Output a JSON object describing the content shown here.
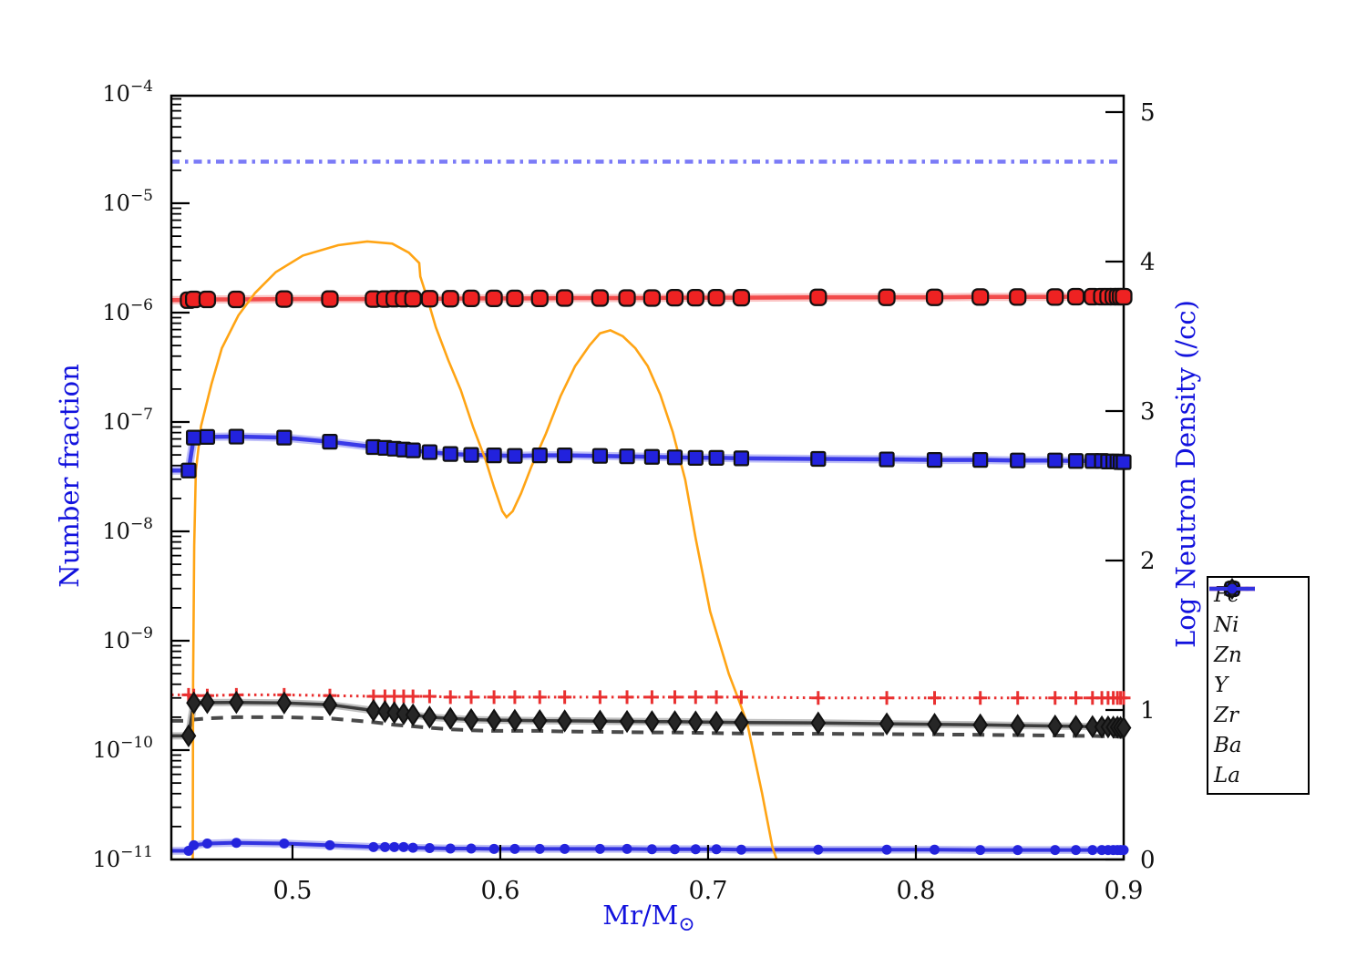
{
  "figure": {
    "xlabel_main": "Mr/M",
    "xlabel_sub": "⊙",
    "ylabel_left": "Number fraction",
    "ylabel_right": "Log Neutron Density (/cc)",
    "label_color": "#1212dd",
    "axis_color": "#000000",
    "background": "#ffffff"
  },
  "chart_data": {
    "type": "line",
    "title": "",
    "x_axis": {
      "label": "Mr/M⊙",
      "range": [
        0.4417,
        0.9
      ],
      "ticks": [
        0.5,
        0.6,
        0.7,
        0.8,
        0.9
      ],
      "tick_labels": [
        "0.5",
        "0.6",
        "0.7",
        "0.8",
        "0.9"
      ]
    },
    "y_axis_left": {
      "label": "Number fraction",
      "scale": "log",
      "range": [
        1e-11,
        0.0001
      ],
      "tick_exponents": [
        -4,
        -5,
        -6,
        -7,
        -8,
        -9,
        -10,
        -11
      ]
    },
    "y_axis_right": {
      "label": "Log Neutron Density (/cc)",
      "scale": "linear",
      "range": [
        0,
        5.11
      ],
      "ticks": [
        0,
        1,
        2,
        3,
        4,
        5
      ],
      "tick_labels": [
        "0",
        "1",
        "2",
        "3",
        "4",
        "5"
      ]
    },
    "grid": false,
    "x": [
      0.4417,
      0.45,
      0.4525,
      0.459,
      0.473,
      0.496,
      0.518,
      0.539,
      0.5445,
      0.549,
      0.5535,
      0.558,
      0.566,
      0.576,
      0.586,
      0.597,
      0.607,
      0.619,
      0.631,
      0.648,
      0.661,
      0.673,
      0.684,
      0.694,
      0.704,
      0.716,
      0.753,
      0.786,
      0.809,
      0.831,
      0.849,
      0.867,
      0.877,
      0.885,
      0.8895,
      0.8925,
      0.895,
      0.897,
      0.8985,
      0.9
    ],
    "series": [
      {
        "name": "Fe",
        "color": "#7b7bf7",
        "style": "dashdot",
        "width": 4.5,
        "glow": false,
        "marker": "none",
        "marker_fill": "#7b7bf7",
        "msize": 0,
        "values": 2.4e-05
      },
      {
        "name": "Ni",
        "color": "#f24b4b",
        "style": "solid",
        "width": 4.5,
        "glow": true,
        "marker": "round-square",
        "marker_fill": "#ee2222",
        "msize": 17,
        "values": [
          1.3e-06,
          1.3e-06,
          1.32e-06,
          1.32e-06,
          1.32e-06,
          1.33e-06,
          1.33e-06,
          1.33e-06,
          1.33e-06,
          1.34e-06,
          1.34e-06,
          1.34e-06,
          1.34e-06,
          1.34e-06,
          1.35e-06,
          1.35e-06,
          1.35e-06,
          1.35e-06,
          1.36e-06,
          1.36e-06,
          1.36e-06,
          1.36e-06,
          1.37e-06,
          1.37e-06,
          1.37e-06,
          1.37e-06,
          1.38e-06,
          1.38e-06,
          1.38e-06,
          1.39e-06,
          1.39e-06,
          1.39e-06,
          1.4e-06,
          1.4e-06,
          1.4e-06,
          1.4e-06,
          1.4e-06,
          1.4e-06,
          1.4e-06,
          1.4e-06
        ]
      },
      {
        "name": "Zn",
        "color": "#3a3ae8",
        "style": "solid",
        "width": 4.5,
        "glow": true,
        "marker": "square",
        "marker_fill": "#2222dd",
        "msize": 15,
        "values": [
          3.6e-08,
          3.6e-08,
          7.2e-08,
          7.3e-08,
          7.35e-08,
          7.2e-08,
          6.6e-08,
          5.9e-08,
          5.8e-08,
          5.7e-08,
          5.6e-08,
          5.5e-08,
          5.3e-08,
          5.1e-08,
          5e-08,
          4.95e-08,
          4.9e-08,
          4.95e-08,
          4.95e-08,
          4.9e-08,
          4.85e-08,
          4.8e-08,
          4.75e-08,
          4.7e-08,
          4.7e-08,
          4.65e-08,
          4.6e-08,
          4.55e-08,
          4.5e-08,
          4.5e-08,
          4.45e-08,
          4.45e-08,
          4.4e-08,
          4.4e-08,
          4.4e-08,
          4.35e-08,
          4.35e-08,
          4.35e-08,
          4.3e-08,
          4.3e-08
        ]
      },
      {
        "name": "Y",
        "color": "#4a4a4a",
        "style": "dash",
        "width": 4,
        "glow": false,
        "marker": "none",
        "marker_fill": "#4a4a4a",
        "msize": 0,
        "values": [
          1.85e-10,
          1.85e-10,
          1.9e-10,
          1.95e-10,
          2e-10,
          2e-10,
          1.95e-10,
          1.8e-10,
          1.75e-10,
          1.7e-10,
          1.68e-10,
          1.65e-10,
          1.6e-10,
          1.55e-10,
          1.52e-10,
          1.5e-10,
          1.5e-10,
          1.5e-10,
          1.48e-10,
          1.47e-10,
          1.46e-10,
          1.45e-10,
          1.45e-10,
          1.44e-10,
          1.43e-10,
          1.42e-10,
          1.41e-10,
          1.4e-10,
          1.39e-10,
          1.38e-10,
          1.37e-10,
          1.36e-10,
          1.35e-10,
          1.35e-10,
          1.34e-10,
          1.34e-10,
          1.33e-10,
          1.33e-10,
          1.32e-10,
          1.32e-10
        ]
      },
      {
        "name": "Zr",
        "color": "#e93030",
        "style": "dot",
        "width": 3,
        "glow": false,
        "marker": "plus",
        "marker_fill": "#e93030",
        "msize": 15,
        "values": [
          3.2e-10,
          3.2e-10,
          3.15e-10,
          3.15e-10,
          3.2e-10,
          3.2e-10,
          3.15e-10,
          3.1e-10,
          3.1e-10,
          3.1e-10,
          3.1e-10,
          3.1e-10,
          3.1e-10,
          3.05e-10,
          3.05e-10,
          3.05e-10,
          3.05e-10,
          3.05e-10,
          3.05e-10,
          3.05e-10,
          3.05e-10,
          3.05e-10,
          3.05e-10,
          3.05e-10,
          3.05e-10,
          3.05e-10,
          3e-10,
          3e-10,
          3e-10,
          3e-10,
          3e-10,
          3e-10,
          3e-10,
          3e-10,
          3e-10,
          3e-10,
          3e-10,
          3e-10,
          3e-10,
          3e-10
        ]
      },
      {
        "name": "Ba",
        "color": "#3c3c3c",
        "style": "solid",
        "width": 3.5,
        "glow": true,
        "marker": "diamond",
        "marker_fill": "#262626",
        "msize": 16,
        "values": [
          1.35e-10,
          1.35e-10,
          2.7e-10,
          2.72e-10,
          2.73e-10,
          2.7e-10,
          2.6e-10,
          2.3e-10,
          2.25e-10,
          2.2e-10,
          2.15e-10,
          2.1e-10,
          2e-10,
          1.95e-10,
          1.9e-10,
          1.88e-10,
          1.87e-10,
          1.86e-10,
          1.85e-10,
          1.84e-10,
          1.83e-10,
          1.82e-10,
          1.82e-10,
          1.81e-10,
          1.8e-10,
          1.79e-10,
          1.77e-10,
          1.74e-10,
          1.72e-10,
          1.7e-10,
          1.68e-10,
          1.66e-10,
          1.65e-10,
          1.64e-10,
          1.63e-10,
          1.63e-10,
          1.62e-10,
          1.62e-10,
          1.61e-10,
          1.6e-10
        ]
      },
      {
        "name": "La",
        "color": "#3333e0",
        "style": "solid",
        "width": 4,
        "glow": true,
        "marker": "dot",
        "marker_fill": "#2424dd",
        "msize": 11,
        "values": [
          1.2e-11,
          1.2e-11,
          1.35e-11,
          1.4e-11,
          1.42e-11,
          1.4e-11,
          1.35e-11,
          1.3e-11,
          1.3e-11,
          1.3e-11,
          1.3e-11,
          1.28e-11,
          1.27e-11,
          1.26e-11,
          1.26e-11,
          1.25e-11,
          1.25e-11,
          1.25e-11,
          1.25e-11,
          1.25e-11,
          1.25e-11,
          1.24e-11,
          1.24e-11,
          1.24e-11,
          1.24e-11,
          1.23e-11,
          1.23e-11,
          1.23e-11,
          1.23e-11,
          1.22e-11,
          1.22e-11,
          1.22e-11,
          1.22e-11,
          1.22e-11,
          1.22e-11,
          1.22e-11,
          1.22e-11,
          1.22e-11,
          1.22e-11,
          1.22e-11
        ]
      }
    ],
    "neutron_density": {
      "name": "neutron-density",
      "axis": "right",
      "color": "#FFA414",
      "width": 2.6,
      "points": [
        [
          0.452,
          0.0
        ],
        [
          0.4522,
          1.2
        ],
        [
          0.4527,
          2.1
        ],
        [
          0.4535,
          2.6
        ],
        [
          0.456,
          2.9
        ],
        [
          0.461,
          3.18
        ],
        [
          0.466,
          3.42
        ],
        [
          0.474,
          3.64
        ],
        [
          0.482,
          3.79
        ],
        [
          0.492,
          3.93
        ],
        [
          0.505,
          4.04
        ],
        [
          0.522,
          4.11
        ],
        [
          0.536,
          4.135
        ],
        [
          0.548,
          4.12
        ],
        [
          0.556,
          4.06
        ],
        [
          0.561,
          3.99
        ],
        [
          0.5615,
          3.9
        ],
        [
          0.565,
          3.75
        ],
        [
          0.569,
          3.56
        ],
        [
          0.575,
          3.34
        ],
        [
          0.581,
          3.14
        ],
        [
          0.587,
          2.89
        ],
        [
          0.593,
          2.67
        ],
        [
          0.597,
          2.49
        ],
        [
          0.601,
          2.33
        ],
        [
          0.603,
          2.29
        ],
        [
          0.606,
          2.33
        ],
        [
          0.61,
          2.45
        ],
        [
          0.615,
          2.63
        ],
        [
          0.622,
          2.85
        ],
        [
          0.629,
          3.1
        ],
        [
          0.636,
          3.3
        ],
        [
          0.643,
          3.44
        ],
        [
          0.648,
          3.52
        ],
        [
          0.653,
          3.54
        ],
        [
          0.659,
          3.5
        ],
        [
          0.665,
          3.42
        ],
        [
          0.671,
          3.3
        ],
        [
          0.677,
          3.11
        ],
        [
          0.683,
          2.86
        ],
        [
          0.689,
          2.54
        ],
        [
          0.694,
          2.15
        ],
        [
          0.701,
          1.66
        ],
        [
          0.71,
          1.24
        ],
        [
          0.7155,
          1.04
        ],
        [
          0.719,
          0.9
        ],
        [
          0.726,
          0.44
        ],
        [
          0.731,
          0.08
        ],
        [
          0.733,
          0.0
        ]
      ]
    },
    "legend": {
      "position": "center-right",
      "entries": [
        "Fe",
        "Ni",
        "Zn",
        "Y",
        "Zr",
        "Ba",
        "La"
      ]
    }
  }
}
